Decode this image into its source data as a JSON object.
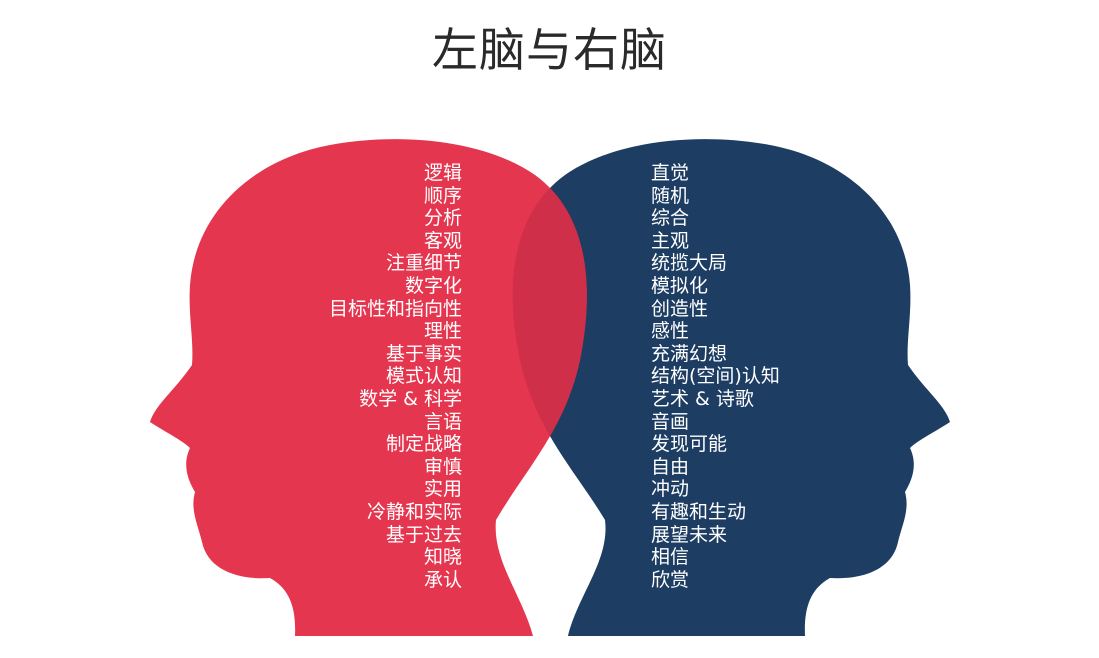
{
  "title": "左脑与右脑",
  "colors": {
    "left_head": "#e5364f",
    "right_head": "#1d3d63",
    "overlap": "#cf2f48",
    "text": "#ffffff",
    "title": "#2a2a2a"
  },
  "left_brain": {
    "traits": [
      "逻辑",
      "顺序",
      "分析",
      "客观",
      "注重细节",
      "数字化",
      "目标性和指向性",
      "理性",
      "基于事实",
      "模式认知",
      "数学 & 科学",
      "言语",
      "制定战略",
      "审慎",
      "实用",
      "冷静和实际",
      "基于过去",
      "知晓",
      "承认"
    ]
  },
  "right_brain": {
    "traits": [
      "直觉",
      "随机",
      "综合",
      "主观",
      "统揽大局",
      "模拟化",
      "创造性",
      "感性",
      "充满幻想",
      "结构(空间)认知",
      "艺术 & 诗歌",
      "音画",
      "发现可能",
      "自由",
      "冲动",
      "有趣和生动",
      "展望未来",
      "相信",
      "欣赏"
    ]
  }
}
